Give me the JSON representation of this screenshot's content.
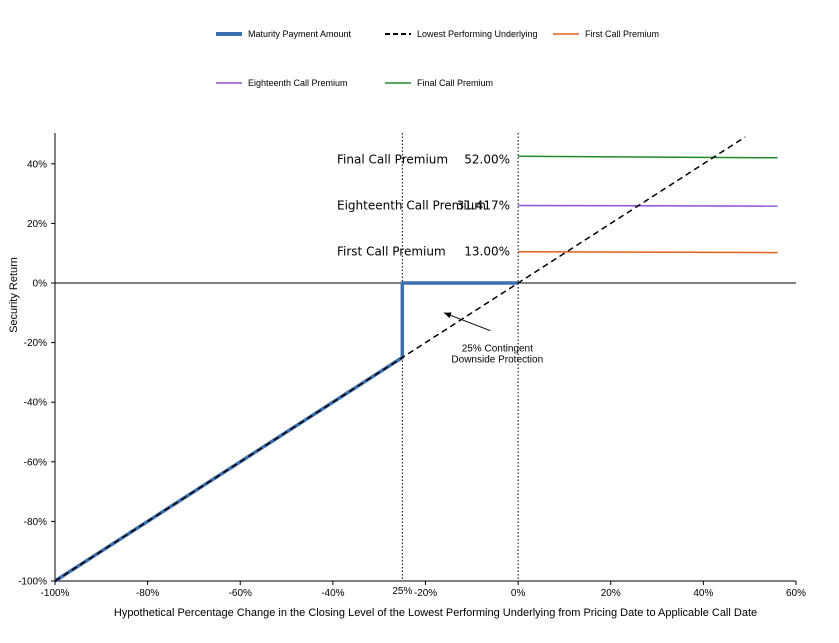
{
  "chart_data": {
    "type": "line",
    "xlabel": "Hypothetical Percentage Change in the Closing Level of the Lowest Performing Underlying from Pricing Date to Applicable Call Date",
    "ylabel": "Security Return",
    "xlim": [
      -100,
      60
    ],
    "ylim": [
      -100,
      50
    ],
    "x_ticks": [
      {
        "value": -100,
        "label": "-100%"
      },
      {
        "value": -80,
        "label": "-80%"
      },
      {
        "value": -60,
        "label": "-60%"
      },
      {
        "value": -40,
        "label": "-40%"
      },
      {
        "value": -20,
        "label": "-20%"
      },
      {
        "value": 0,
        "label": "0%"
      },
      {
        "value": 20,
        "label": "20%"
      },
      {
        "value": 40,
        "label": "40%"
      },
      {
        "value": 60,
        "label": "60%"
      }
    ],
    "y_ticks": [
      {
        "value": 40,
        "label": "40%"
      },
      {
        "value": 20,
        "label": "20%"
      },
      {
        "value": 0,
        "label": "0%"
      },
      {
        "value": -20,
        "label": "-20%"
      },
      {
        "value": -40,
        "label": "-40%"
      },
      {
        "value": -60,
        "label": "-60%"
      },
      {
        "value": -80,
        "label": "-80%"
      },
      {
        "value": -100,
        "label": "-100%"
      }
    ],
    "extra_x_label": {
      "value": -25,
      "label": "25%"
    },
    "reference_lines_x": [
      -25,
      0
    ],
    "legend_placement": "top",
    "series": [
      {
        "name": "Maturity Payment Amount",
        "color": "#3b6fb0",
        "style": "thick",
        "points": [
          [
            -100,
            -100
          ],
          [
            -25,
            -25
          ],
          [
            -25,
            0
          ],
          [
            0,
            0
          ]
        ]
      },
      {
        "name": "Lowest Performing Underlying",
        "color": "#000000",
        "style": "dashed",
        "points": [
          [
            -100,
            -100
          ],
          [
            49,
            49
          ]
        ]
      },
      {
        "name": "First Call Premium",
        "color": "#e3601d",
        "style": "solid",
        "points": [
          [
            0,
            10.5
          ],
          [
            56,
            10.2
          ]
        ]
      },
      {
        "name": "Eighteenth Call Premium",
        "color": "#8d4fd6",
        "style": "solid",
        "points": [
          [
            0,
            26
          ],
          [
            56,
            25.8
          ]
        ]
      },
      {
        "name": "Final Call Premium",
        "color": "#1f8a2c",
        "style": "solid",
        "points": [
          [
            0,
            42.5
          ],
          [
            56,
            42
          ]
        ]
      }
    ],
    "premium_labels": [
      {
        "name": "Final Call Premium",
        "value": "52.00%",
        "y": 41.5
      },
      {
        "name": "Eighteenth Call Premium",
        "value": "31.417%",
        "y": 26
      },
      {
        "name": "First Call Premium",
        "value": "13.00%",
        "y": 10.5
      }
    ],
    "annotation": {
      "lines": [
        "25% Contingent",
        "Downside Protection"
      ],
      "arrow_from": [
        -6,
        -16
      ],
      "arrow_to": [
        -16,
        -10
      ],
      "text_at": [
        -4.5,
        -23
      ]
    }
  }
}
